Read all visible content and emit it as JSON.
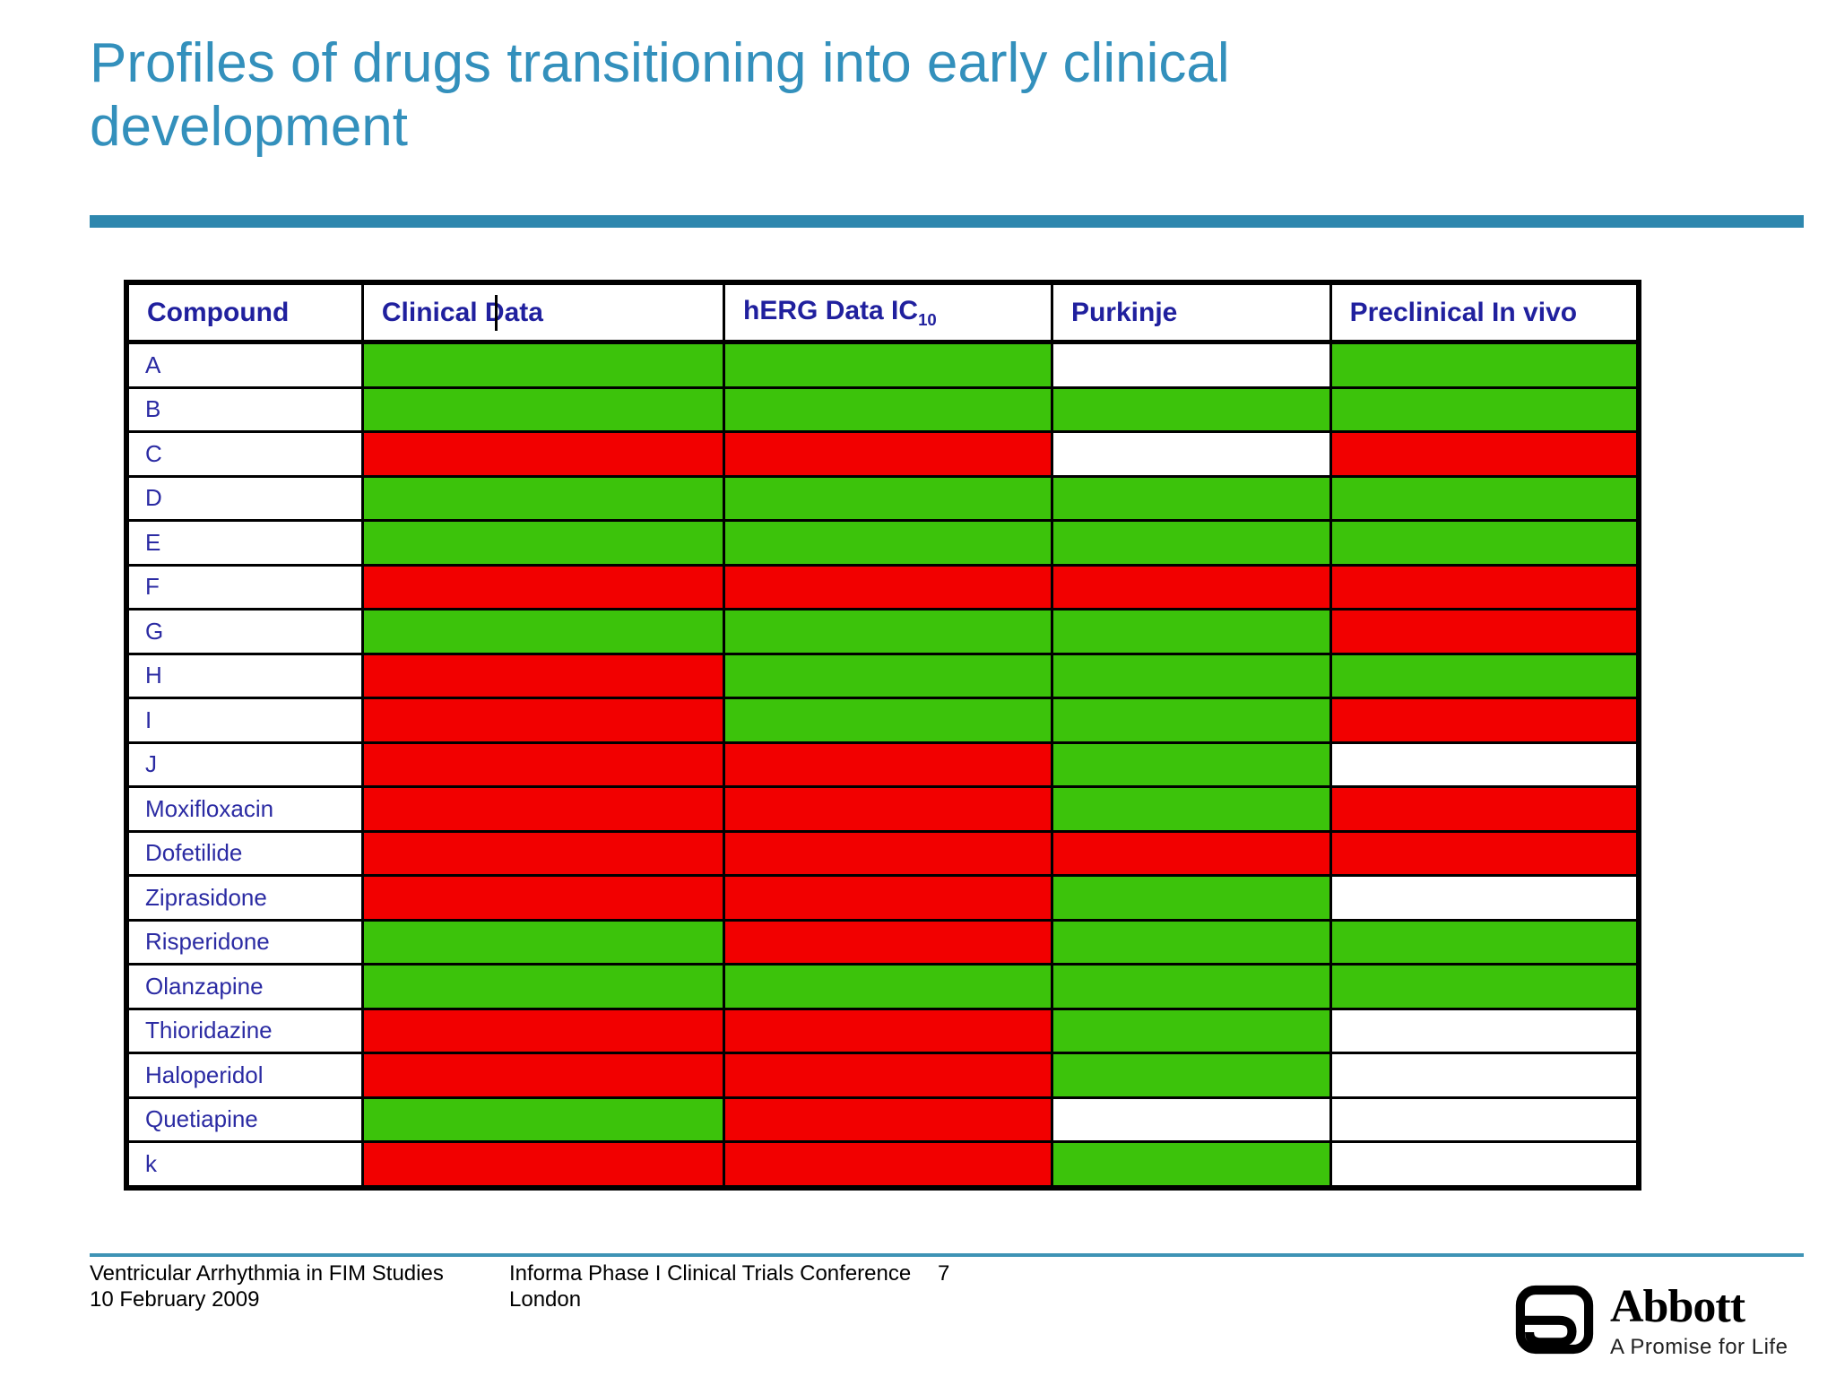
{
  "title": {
    "lines": [
      "Profiles of drugs transitioning into early clinical",
      "development"
    ]
  },
  "colors": {
    "title_text": "#3390BC",
    "accent_bar": "#2E87AE",
    "table_header_text": "#20209E",
    "status_green": "#3CC30B",
    "status_red": "#F20000",
    "status_white": "#FFFFFF"
  },
  "table": {
    "columns": [
      {
        "label": "Compound"
      },
      {
        "label": "Clinical Data"
      },
      {
        "label": "hERG Data IC",
        "sub": "10"
      },
      {
        "label": "Purkinje"
      },
      {
        "label": "Preclinical In vivo"
      }
    ],
    "legend_colors": {
      "green": "#3CC30B",
      "red": "#F20000",
      "white": "#FFFFFF"
    },
    "rows": [
      {
        "compound": "A",
        "cells": [
          "green",
          "green",
          "white",
          "green"
        ]
      },
      {
        "compound": "B",
        "cells": [
          "green",
          "green",
          "green",
          "green"
        ]
      },
      {
        "compound": "C",
        "cells": [
          "red",
          "red",
          "white",
          "red"
        ]
      },
      {
        "compound": "D",
        "cells": [
          "green",
          "green",
          "green",
          "green"
        ]
      },
      {
        "compound": "E",
        "cells": [
          "green",
          "green",
          "green",
          "green"
        ]
      },
      {
        "compound": "F",
        "cells": [
          "red",
          "red",
          "red",
          "red"
        ]
      },
      {
        "compound": "G",
        "cells": [
          "green",
          "green",
          "green",
          "red"
        ]
      },
      {
        "compound": "H",
        "cells": [
          "red",
          "green",
          "green",
          "green"
        ]
      },
      {
        "compound": "I",
        "cells": [
          "red",
          "green",
          "green",
          "red"
        ]
      },
      {
        "compound": "J",
        "cells": [
          "red",
          "red",
          "green",
          "white"
        ]
      },
      {
        "compound": "Moxifloxacin",
        "cells": [
          "red",
          "red",
          "green",
          "red"
        ]
      },
      {
        "compound": "Dofetilide",
        "cells": [
          "red",
          "red",
          "red",
          "red"
        ]
      },
      {
        "compound": "Ziprasidone",
        "cells": [
          "red",
          "red",
          "green",
          "white"
        ]
      },
      {
        "compound": "Risperidone",
        "cells": [
          "green",
          "red",
          "green",
          "green"
        ]
      },
      {
        "compound": "Olanzapine",
        "cells": [
          "green",
          "green",
          "green",
          "green"
        ]
      },
      {
        "compound": "Thioridazine",
        "cells": [
          "red",
          "red",
          "green",
          "white"
        ]
      },
      {
        "compound": "Haloperidol",
        "cells": [
          "red",
          "red",
          "green",
          "white"
        ]
      },
      {
        "compound": "Quetiapine",
        "cells": [
          "green",
          "red",
          "white",
          "white"
        ]
      },
      {
        "compound": "k",
        "cells": [
          "red",
          "red",
          "green",
          "white"
        ]
      }
    ]
  },
  "footer": {
    "left_line1": "Ventricular Arrhythmia in FIM Studies",
    "left_line2": "10 February 2009",
    "center_line1": "Informa Phase I Clinical Trials Conference",
    "center_line2": "London",
    "page_number": "7",
    "logo_name": "Abbott",
    "logo_tagline": "A Promise for Life"
  }
}
